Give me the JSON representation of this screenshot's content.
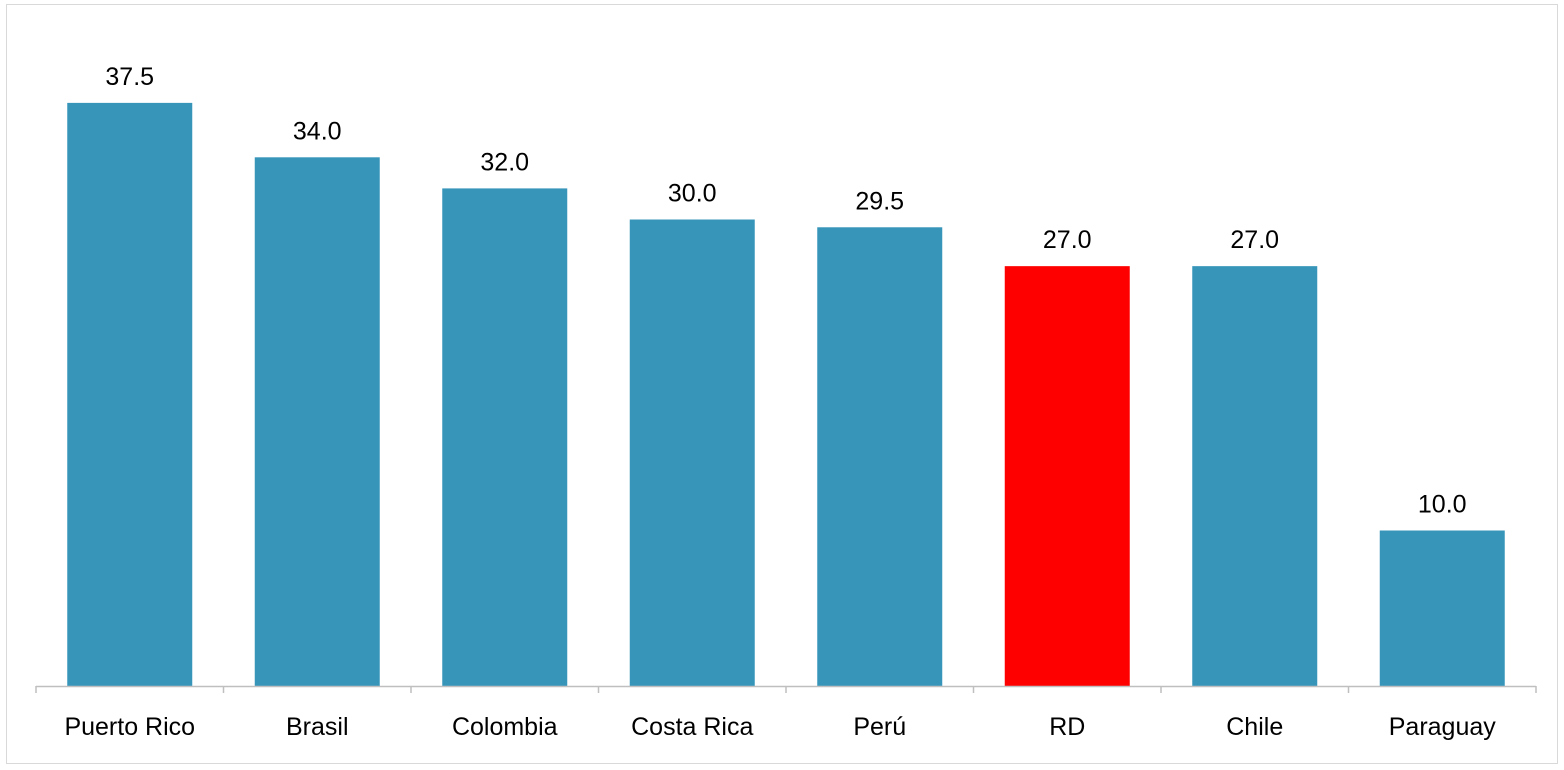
{
  "chart_data": {
    "type": "bar",
    "title": "",
    "xlabel": "",
    "ylabel": "",
    "categories": [
      "Puerto Rico",
      "Brasil",
      "Colombia",
      "Costa Rica",
      "Perú",
      "RD",
      "Chile",
      "Paraguay"
    ],
    "values": [
      37.5,
      34.0,
      32.0,
      30.0,
      29.5,
      27.0,
      27.0,
      10.0
    ],
    "value_labels": [
      "37.5",
      "34.0",
      "32.0",
      "30.0",
      "29.5",
      "27.0",
      "27.0",
      "10.0"
    ],
    "ylim": [
      0,
      40
    ],
    "grid": false,
    "legend": "none",
    "colors": {
      "default": "#3795BA",
      "highlight": "#FF0000",
      "highlight_category": "RD",
      "axis": "#bfbfbf"
    }
  }
}
